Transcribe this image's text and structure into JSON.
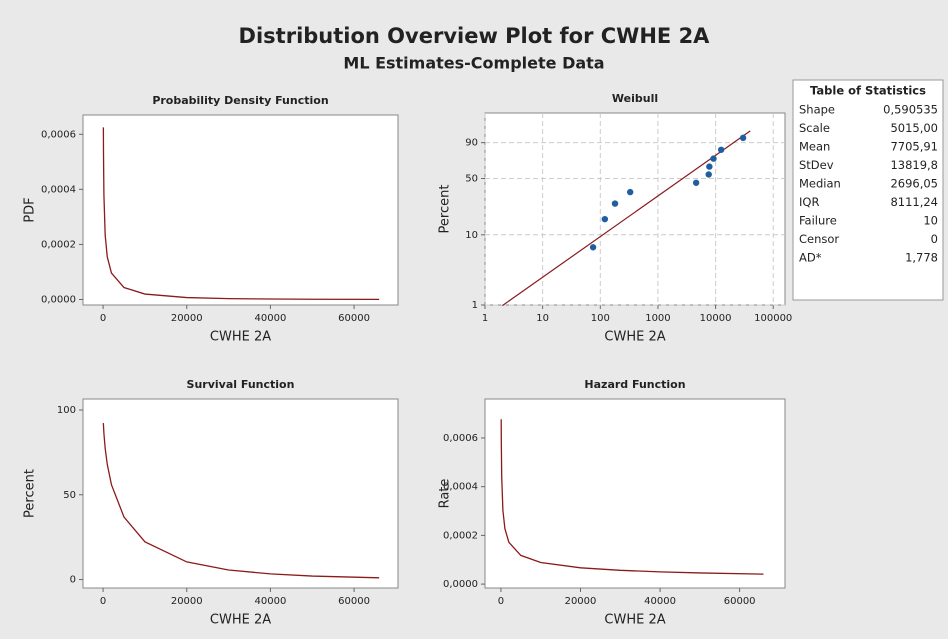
{
  "title": "Distribution Overview Plot for CWHE 2A",
  "subtitle": "ML Estimates-Complete Data",
  "statistics": {
    "title": "Table of Statistics",
    "rows": [
      [
        "Shape",
        "0,590535"
      ],
      [
        "Scale",
        "5015,00"
      ],
      [
        "Mean",
        "7705,91"
      ],
      [
        "StDev",
        "13819,8"
      ],
      [
        "Median",
        "2696,05"
      ],
      [
        "IQR",
        "8111,24"
      ],
      [
        "Failure",
        "10"
      ],
      [
        "Censor",
        "0"
      ],
      [
        "AD*",
        "1,778"
      ]
    ]
  },
  "chart_data": [
    {
      "type": "line",
      "title": "Probability Density Function",
      "xlabel": "CWHE 2A",
      "ylabel": "PDF",
      "color": "#8b1a1a",
      "x": [
        70,
        100,
        200,
        500,
        1000,
        2000,
        5000,
        10000,
        20000,
        30000,
        40000,
        50000,
        66000
      ],
      "values": [
        0.000625,
        0.00053,
        0.0003794,
        0.0002343,
        0.0001549,
        9.6e-05,
        4.34e-05,
        1.975e-05,
        6.95e-06,
        3.19e-06,
        1.67e-06,
        9.4e-07,
        4.2e-07
      ],
      "xlim": [
        -4800,
        70500
      ],
      "ylim": [
        -2e-05,
        0.00067
      ],
      "xticks": [
        0,
        20000,
        40000,
        60000
      ],
      "yticks": [
        {
          "value": 0,
          "label": "0,0000"
        },
        {
          "value": 0.0002,
          "label": "0,0002"
        },
        {
          "value": 0.0004,
          "label": "0,0004"
        },
        {
          "value": 0.0006,
          "label": "0,0006"
        }
      ]
    },
    {
      "type": "scatter",
      "title": "Weibull",
      "xlabel": "CWHE 2A",
      "ylabel": "Percent",
      "color": "#1f5fa0",
      "xscale": "log",
      "yscale": "weibull",
      "grid": true,
      "x": [
        75,
        120,
        180,
        330,
        4600,
        7600,
        7800,
        9200,
        12500,
        30000
      ],
      "values": [
        6.7,
        16.3,
        25.9,
        35.6,
        45.2,
        54.8,
        64.4,
        74.1,
        83.7,
        93.3
      ],
      "fit": {
        "color": "#8b1a1a",
        "x": [
          2,
          40000
        ],
        "values": [
          0.98,
          96.7
        ]
      },
      "xlim": [
        1,
        160000
      ],
      "ylim": [
        1,
        99.8
      ],
      "xticks": [
        1,
        10,
        100,
        1000,
        10000,
        100000
      ],
      "yticks": [
        1,
        10,
        50,
        90
      ]
    },
    {
      "type": "line",
      "title": "Survival Function",
      "xlabel": "CWHE 2A",
      "ylabel": "Percent",
      "color": "#8b1a1a",
      "x": [
        70,
        100,
        200,
        500,
        1000,
        2000,
        5000,
        10000,
        20000,
        30000,
        40000,
        50000,
        66000
      ],
      "values": [
        92.3,
        90.6,
        86.14,
        77.39,
        67.98,
        55.93,
        36.85,
        22.25,
        10.4,
        5.64,
        3.31,
        2.05,
        1.02
      ],
      "xlim": [
        -4800,
        70500
      ],
      "ylim": [
        -5,
        106.5
      ],
      "xticks": [
        0,
        20000,
        40000,
        60000
      ],
      "yticks": [
        0,
        50,
        100
      ]
    },
    {
      "type": "line",
      "title": "Hazard Function",
      "xlabel": "CWHE 2A",
      "ylabel": "Rate",
      "color": "#8b1a1a",
      "x": [
        70,
        100,
        200,
        500,
        1000,
        2000,
        5000,
        10000,
        20000,
        30000,
        40000,
        50000,
        66000
      ],
      "values": [
        0.000677,
        0.000585,
        0.0004405,
        0.0003027,
        0.0002279,
        0.0001716,
        0.0001179,
        8.876e-05,
        6.682e-05,
        5.66e-05,
        5.031e-05,
        4.592e-05,
        4.098e-05
      ],
      "xlim": [
        -4000,
        71400
      ],
      "ylim": [
        -1.6e-05,
        0.00076
      ],
      "xticks": [
        0,
        20000,
        40000,
        60000
      ],
      "yticks": [
        {
          "value": 0,
          "label": "0,0000"
        },
        {
          "value": 0.0002,
          "label": "0,0002"
        },
        {
          "value": 0.0004,
          "label": "0,0004"
        },
        {
          "value": 0.0006,
          "label": "0,0006"
        }
      ]
    }
  ]
}
